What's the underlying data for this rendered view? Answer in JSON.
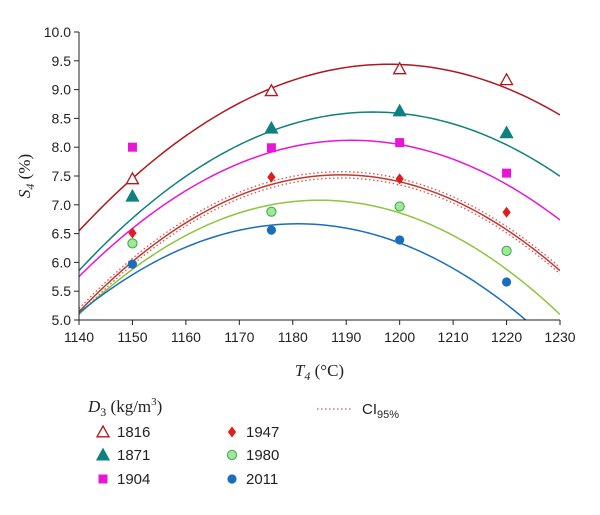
{
  "chart_data": {
    "type": "scatter",
    "title": "",
    "xlabel": {
      "main": "T",
      "sub": "4",
      "unit": " (°C)"
    },
    "ylabel": {
      "main": "S",
      "sub": "4",
      "unit": " (%)"
    },
    "xlim": [
      1140,
      1230
    ],
    "ylim": [
      5.0,
      10.0
    ],
    "xticks": [
      1140,
      1150,
      1160,
      1170,
      1180,
      1190,
      1200,
      1210,
      1220,
      1230
    ],
    "yticks": [
      "5.0",
      "5.5",
      "6.0",
      "6.5",
      "7.0",
      "7.5",
      "8.0",
      "8.5",
      "9.0",
      "9.5",
      "10.0"
    ],
    "grid": false,
    "legend": {
      "title_main": "D",
      "title_sub": "3",
      "title_unit": " (kg/m",
      "title_sup": "3",
      "title_close": ")",
      "ci_main": "CI",
      "ci_sub": "95%",
      "placement": "bottom"
    },
    "series": [
      {
        "name": "1816",
        "marker": "triangle-open",
        "color": "#b0171f",
        "x": [
          1150,
          1176,
          1200,
          1220
        ],
        "y": [
          7.45,
          8.98,
          9.36,
          9.17
        ],
        "fit": {
          "vertex_x": 1198,
          "vertex_y": 9.44,
          "a": -0.00086
        }
      },
      {
        "name": "1871",
        "marker": "triangle",
        "color": "#0f8080",
        "x": [
          1150,
          1176,
          1200,
          1220
        ],
        "y": [
          7.15,
          8.33,
          8.63,
          8.25
        ],
        "fit": {
          "vertex_x": 1195,
          "vertex_y": 8.61,
          "a": -0.00091
        }
      },
      {
        "name": "1904",
        "marker": "square",
        "color": "#e815d6",
        "x": [
          1150,
          1176,
          1200,
          1220
        ],
        "y": [
          8.0,
          7.99,
          8.08,
          7.55
        ],
        "fit": {
          "vertex_x": 1191,
          "vertex_y": 8.12,
          "a": -0.00091
        }
      },
      {
        "name": "1947",
        "marker": "diamond",
        "color": "#e01c1c",
        "x": [
          1150,
          1176,
          1200,
          1220
        ],
        "y": [
          6.51,
          7.48,
          7.45,
          6.87
        ],
        "fit": {
          "vertex_x": 1189,
          "vertex_y": 7.52,
          "a": -0.00099
        }
      },
      {
        "name": "1980",
        "marker": "circle-light",
        "color": "#3aa844",
        "fill": "#9ee89a",
        "x": [
          1150,
          1176,
          1200,
          1220
        ],
        "y": [
          6.33,
          6.88,
          6.97,
          6.2
        ],
        "fit": {
          "vertex_x": 1185,
          "vertex_y": 7.08,
          "a": -0.00098
        }
      },
      {
        "name": "2011",
        "marker": "circle",
        "color": "#1a6ebd",
        "x": [
          1150,
          1176,
          1200,
          1220
        ],
        "y": [
          5.97,
          6.56,
          6.39,
          5.66
        ],
        "fit": {
          "vertex_x": 1181,
          "vertex_y": 6.67,
          "a": -0.00092
        }
      }
    ],
    "fit_colors": {
      "1816": "#b0171f",
      "1871": "#0f8080",
      "1904": "#e815d6",
      "1947": "#c0392b",
      "1980": "#8cc63f",
      "2011": "#1a6ebd"
    },
    "ci_band": {
      "series": "1947",
      "half_width": 0.055,
      "color": "#e05050"
    }
  }
}
